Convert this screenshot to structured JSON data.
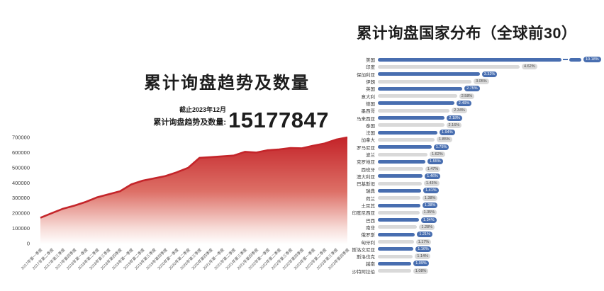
{
  "left_chart": {
    "title": "累计询盘趋势及数量",
    "as_of": "截止2023年12月",
    "stat_label": "累计询盘趋势及数量:",
    "total": "15177847"
  },
  "right_chart": {
    "title": "累计询盘国家分布（全球前30）"
  },
  "colors": {
    "accent_red": "#c4252a",
    "bar_blue": "#486eb0",
    "bar_gray": "#d9d9d9",
    "pill_text_on_gray": "#4a4a4a",
    "text_dark": "#1d1d1d"
  },
  "chart_data": [
    {
      "type": "area",
      "title": "累计询盘趋势及数量",
      "annotation_as_of": "截止2023年12月",
      "annotation_total": 15177847,
      "x": [
        "2017年第一季度",
        "2017年第二季度",
        "2017年第三季度",
        "2017年第四季度",
        "2018年第一季度",
        "2018年第二季度",
        "2018年第三季度",
        "2018年第四季度",
        "2019年第一季度",
        "2019年第二季度",
        "2019年第三季度",
        "2019年第四季度",
        "2020年第一季度",
        "2020年第二季度",
        "2020年第三季度",
        "2020年第四季度",
        "2021年第一季度",
        "2021年第二季度",
        "2021年第三季度",
        "2021年第四季度",
        "2022年第一季度",
        "2022年第二季度",
        "2022年第三季度",
        "2022年第四季度",
        "2023年第一季度",
        "2023年第二季度",
        "2023年第三季度",
        "2023年第四季度"
      ],
      "values": [
        170000,
        200000,
        230000,
        250000,
        275000,
        305000,
        325000,
        345000,
        390000,
        415000,
        430000,
        445000,
        470000,
        500000,
        565000,
        570000,
        575000,
        580000,
        605000,
        600000,
        615000,
        620000,
        630000,
        628000,
        645000,
        660000,
        685000,
        700000
      ],
      "ylim": [
        0,
        700000
      ],
      "yticks": [
        0,
        100000,
        200000,
        300000,
        400000,
        500000,
        600000,
        700000
      ],
      "grid": false,
      "line_color": "#c4252a",
      "fill": "red-to-white vertical gradient"
    },
    {
      "type": "bar",
      "orientation": "horizontal",
      "title": "累计询盘国家分布（全球前30）",
      "unit": "%",
      "axis_break_category": "美国",
      "bar_colors_alternate": [
        "#486eb0",
        "#d9d9d9"
      ],
      "categories": [
        "美国",
        "印度",
        "保加利亚",
        "伊朗",
        "英国",
        "意大利",
        "德国",
        "墨西哥",
        "马来西亚",
        "泰国",
        "法国",
        "加拿大",
        "罗马尼亚",
        "波兰",
        "克罗地亚",
        "西班牙",
        "澳大利亚",
        "巴基斯坦",
        "瑞典",
        "荷兰",
        "土耳其",
        "印度尼西亚",
        "巴西",
        "南非",
        "俄罗斯",
        "匈牙利",
        "斯洛文尼亚",
        "斯洛伐克",
        "越南",
        "沙特阿拉伯"
      ],
      "values": [
        10.18,
        4.62,
        3.32,
        3.05,
        2.75,
        2.58,
        2.49,
        2.34,
        2.18,
        2.16,
        1.94,
        1.85,
        1.75,
        1.62,
        1.55,
        1.47,
        1.46,
        1.43,
        1.41,
        1.38,
        1.38,
        1.35,
        1.34,
        1.28,
        1.21,
        1.17,
        1.16,
        1.14,
        1.09,
        1.08
      ]
    }
  ]
}
